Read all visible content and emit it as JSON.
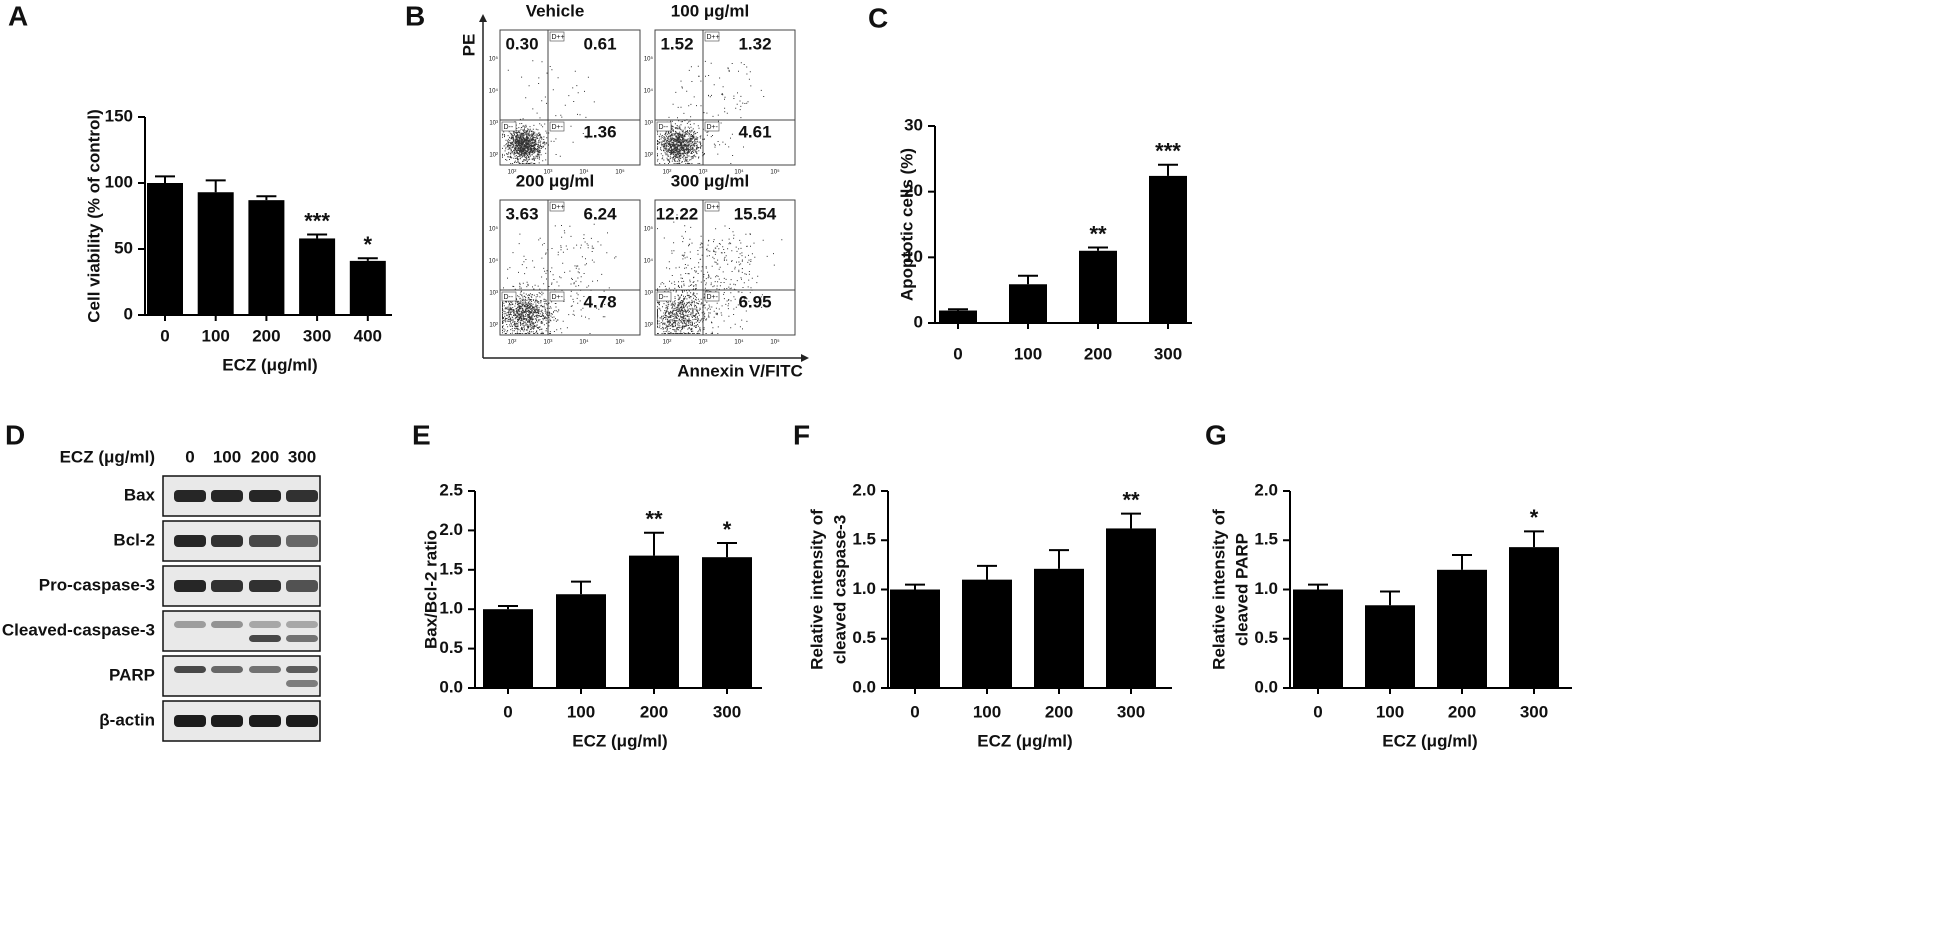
{
  "chart_data": [
    {
      "type": "bar",
      "panel": "A",
      "ylabel": [
        "Cell viability (% of control)"
      ],
      "xlabel": "ECZ (μg/ml)",
      "categories": [
        "0",
        "100",
        "200",
        "300",
        "400"
      ],
      "values": [
        100,
        93,
        87,
        58,
        41
      ],
      "errors": [
        5,
        9,
        3,
        3,
        2
      ],
      "annotations": [
        null,
        null,
        null,
        "***",
        "*"
      ],
      "color": "#000000",
      "ylim": [
        0,
        150
      ],
      "yticks": [
        0,
        50,
        100,
        150
      ]
    },
    {
      "type": "bar",
      "panel": "C",
      "ylabel": [
        "Apoptotic cells (%)"
      ],
      "categories": [
        "0",
        "100",
        "200",
        "300"
      ],
      "values": [
        1.9,
        5.9,
        11.0,
        22.4
      ],
      "errors": [
        0.2,
        1.3,
        0.5,
        1.7
      ],
      "annotations": [
        null,
        null,
        "**",
        "***"
      ],
      "color": "#000000",
      "ylim": [
        0,
        30
      ],
      "yticks": [
        0,
        10,
        20,
        30
      ]
    },
    {
      "type": "bar",
      "panel": "E",
      "ylabel": [
        "Bax/Bcl-2 ratio"
      ],
      "xlabel": "ECZ (μg/ml)",
      "categories": [
        "0",
        "100",
        "200",
        "300"
      ],
      "values": [
        1.0,
        1.19,
        1.68,
        1.66
      ],
      "errors": [
        0.04,
        0.16,
        0.29,
        0.18
      ],
      "annotations": [
        null,
        null,
        "**",
        "*"
      ],
      "color": "#000000",
      "ylim": [
        0,
        2.5
      ],
      "yticks": [
        {
          "value": 0,
          "label": "0.0"
        },
        0.5,
        {
          "value": 1,
          "label": "1.0"
        },
        1.5,
        {
          "value": 2,
          "label": "2.0"
        },
        2.5
      ]
    },
    {
      "type": "bar",
      "panel": "F",
      "ylabel": [
        "Relative intensity of",
        "cleaved caspase-3"
      ],
      "xlabel": "ECZ (μg/ml)",
      "categories": [
        "0",
        "100",
        "200",
        "300"
      ],
      "values": [
        1.0,
        1.1,
        1.21,
        1.62
      ],
      "errors": [
        0.05,
        0.14,
        0.19,
        0.15
      ],
      "annotations": [
        null,
        null,
        null,
        "**"
      ],
      "color": "#000000",
      "ylim": [
        0,
        2
      ],
      "yticks": [
        {
          "value": 0,
          "label": "0.0"
        },
        0.5,
        {
          "value": 1,
          "label": "1.0"
        },
        1.5,
        {
          "value": 2,
          "label": "2.0"
        }
      ]
    },
    {
      "type": "bar",
      "panel": "G",
      "ylabel": [
        "Relative intensity of",
        "cleaved PARP"
      ],
      "xlabel": "ECZ (μg/ml)",
      "categories": [
        "0",
        "100",
        "200",
        "300"
      ],
      "values": [
        1.0,
        0.84,
        1.2,
        1.43
      ],
      "errors": [
        0.05,
        0.14,
        0.15,
        0.16
      ],
      "annotations": [
        null,
        null,
        null,
        "*"
      ],
      "color": "#000000",
      "ylim": [
        0,
        2
      ],
      "yticks": [
        {
          "value": 0,
          "label": "0.0"
        },
        0.5,
        {
          "value": 1,
          "label": "1.0"
        },
        1.5,
        {
          "value": 2,
          "label": "2.0"
        }
      ]
    }
  ],
  "flow": {
    "panel": "B",
    "ylabel": "PE",
    "xlabel": "Annexin V/FITC",
    "axis_ticks": [
      "10²",
      "10³",
      "10⁴",
      "10⁵"
    ],
    "gates": [
      "D--",
      "D+-",
      "D++"
    ],
    "plots": [
      {
        "title": "Vehicle",
        "upper_left": "0.30",
        "upper_right": "0.61",
        "lower_right": "1.36"
      },
      {
        "title": "100 μg/ml",
        "upper_left": "1.52",
        "upper_right": "1.32",
        "lower_right": "4.61"
      },
      {
        "title": "200 μg/ml",
        "upper_left": "3.63",
        "upper_right": "6.24",
        "lower_right": "4.78"
      },
      {
        "title": "300 μg/ml",
        "upper_left": "12.22",
        "upper_right": "15.54",
        "lower_right": "6.95"
      }
    ]
  },
  "blot": {
    "panel": "D",
    "treatment": "ECZ (μg/ml)",
    "lanes": [
      "0",
      "100",
      "200",
      "300"
    ],
    "proteins": [
      "Bax",
      "Bcl-2",
      "Pro-caspase-3",
      "Cleaved-caspase-3",
      "PARP",
      "β-actin"
    ]
  }
}
